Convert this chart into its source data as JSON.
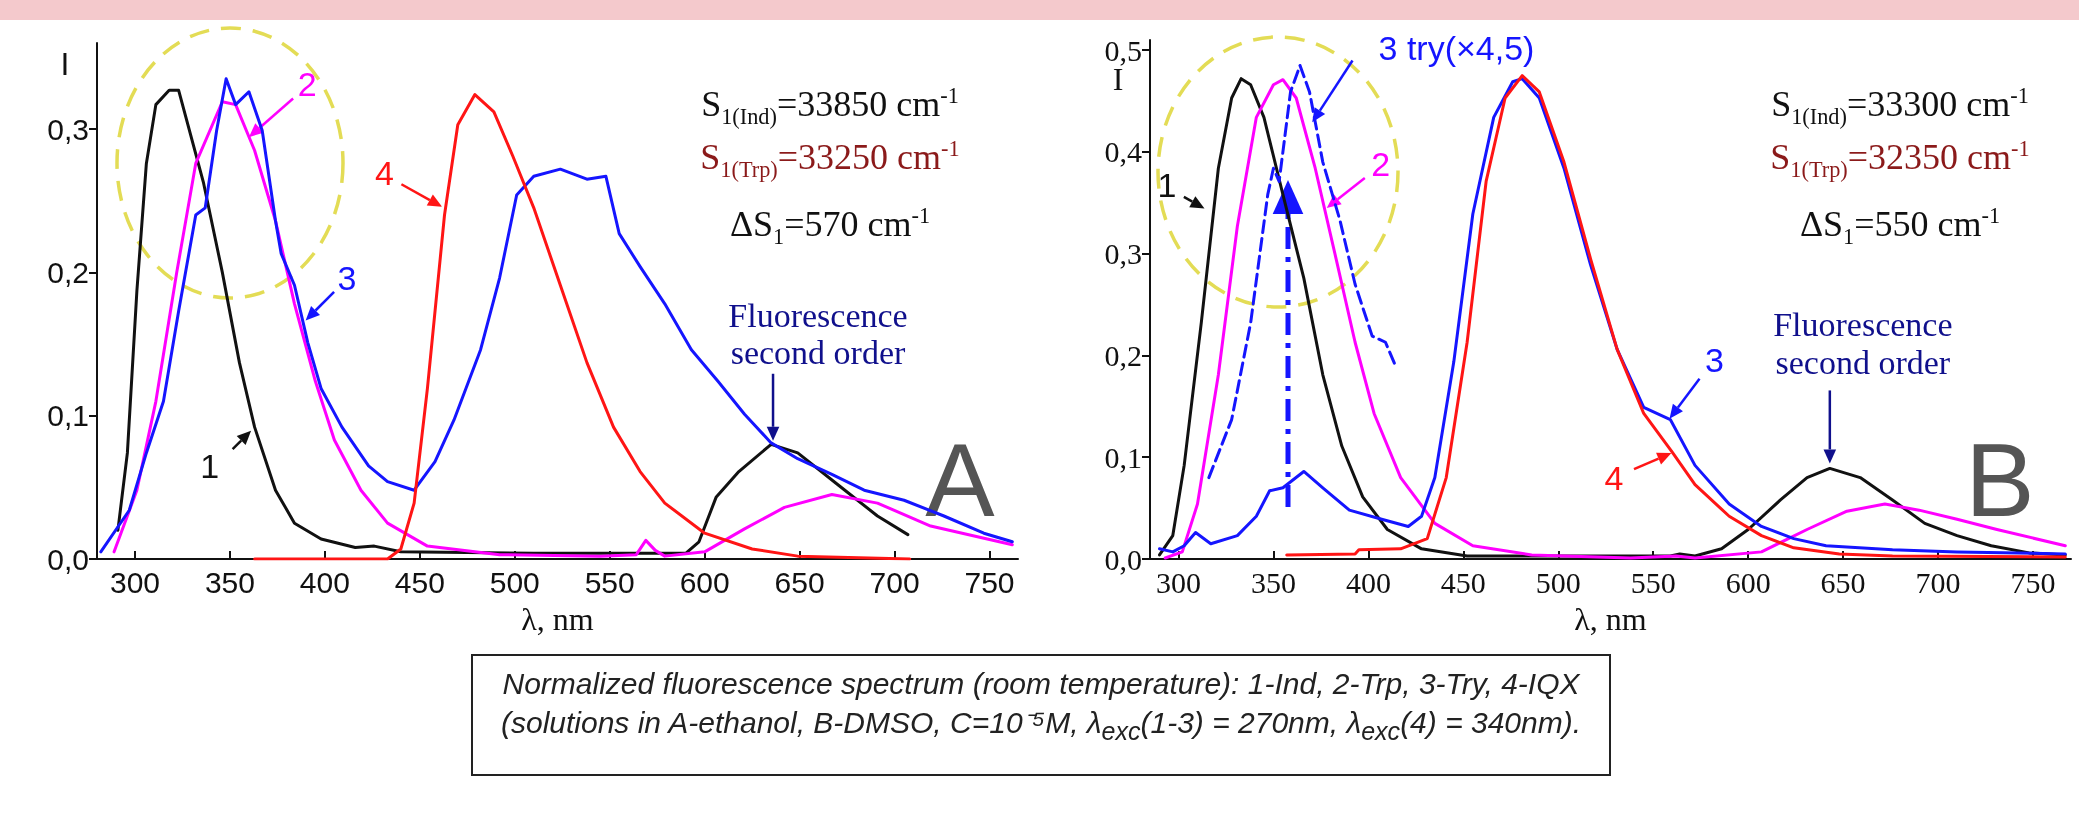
{
  "chart_data": [
    {
      "type": "line",
      "xlabel": "λ, nm",
      "ylabel": "I",
      "xlim": [
        280,
        765
      ],
      "ylim": [
        0,
        0.36
      ],
      "xticks": [
        300,
        350,
        400,
        450,
        500,
        550,
        600,
        650,
        700,
        750
      ],
      "yticks": [
        {
          "value": 0,
          "label": "0,0"
        },
        {
          "value": 0.1,
          "label": "0,1"
        },
        {
          "value": 0.2,
          "label": "0,2"
        },
        {
          "value": 0.3,
          "label": "0,3"
        }
      ],
      "series": [
        {
          "color": "#111111",
          "x": [
            291,
            296,
            301,
            306,
            311,
            318,
            323,
            336,
            346,
            355,
            363,
            374,
            384,
            398,
            416,
            426,
            440,
            510,
            590,
            597,
            606,
            618,
            635,
            649,
            670,
            691,
            707
          ],
          "values": [
            0.02,
            0.074,
            0.187,
            0.276,
            0.317,
            0.327,
            0.327,
            0.263,
            0.2,
            0.137,
            0.092,
            0.048,
            0.025,
            0.014,
            0.008,
            0.009,
            0.005,
            0.004,
            0.004,
            0.012,
            0.043,
            0.061,
            0.08,
            0.074,
            0.052,
            0.03,
            0.017
          ]
        },
        {
          "color": "#ff00ff",
          "x": [
            289,
            301,
            311,
            322,
            332,
            346,
            353,
            363,
            374,
            384,
            395,
            405,
            419,
            433,
            454,
            492,
            545,
            564,
            569,
            574,
            579,
            600,
            621,
            642,
            667,
            691,
            719,
            762
          ],
          "values": [
            0.005,
            0.048,
            0.11,
            0.2,
            0.276,
            0.319,
            0.317,
            0.285,
            0.236,
            0.178,
            0.124,
            0.083,
            0.048,
            0.025,
            0.009,
            0.003,
            0.002,
            0.003,
            0.013,
            0.006,
            0.002,
            0.005,
            0.021,
            0.036,
            0.045,
            0.039,
            0.023,
            0.01
          ]
        },
        {
          "color": "#1515ff",
          "x": [
            282,
            297,
            306,
            315,
            323,
            332,
            337,
            343,
            348,
            353,
            360,
            367,
            374,
            377,
            384,
            391,
            398,
            409,
            423,
            433,
            447,
            458,
            468,
            482,
            492,
            501,
            510,
            524,
            538,
            548,
            555,
            566,
            579,
            593,
            607,
            621,
            635,
            649,
            667,
            684,
            705,
            726,
            747,
            762
          ],
          "values": [
            0.005,
            0.034,
            0.074,
            0.11,
            0.173,
            0.24,
            0.245,
            0.299,
            0.335,
            0.317,
            0.326,
            0.299,
            0.236,
            0.213,
            0.191,
            0.151,
            0.119,
            0.092,
            0.065,
            0.054,
            0.048,
            0.068,
            0.097,
            0.146,
            0.196,
            0.254,
            0.267,
            0.272,
            0.265,
            0.267,
            0.227,
            0.204,
            0.178,
            0.146,
            0.124,
            0.101,
            0.081,
            0.07,
            0.059,
            0.048,
            0.041,
            0.03,
            0.018,
            0.012
          ]
        },
        {
          "color": "#ff1515",
          "x": [
            363,
            433,
            440,
            447,
            454,
            463,
            470,
            479,
            489,
            499,
            510,
            524,
            538,
            552,
            566,
            579,
            600,
            625,
            649,
            708
          ],
          "values": [
            0.0,
            0.0,
            0.007,
            0.039,
            0.119,
            0.24,
            0.303,
            0.324,
            0.312,
            0.281,
            0.245,
            0.191,
            0.137,
            0.092,
            0.061,
            0.039,
            0.018,
            0.007,
            0.002,
            0.0
          ]
        }
      ],
      "annotations": [
        {
          "text": "1",
          "x": 363,
          "y": 0.092
        },
        {
          "text": "2",
          "x": 358,
          "y": 0.292
        },
        {
          "text": "3",
          "x": 388,
          "y": 0.164
        },
        {
          "text": "4",
          "x": 464,
          "y": 0.244
        },
        {
          "text": "Fluorescence second order",
          "x": 636,
          "y": 0.079
        },
        "S$_{1(Ind)}$=33850 cm$^{-1}$",
        "S$_{1(Trp)}$=33250 cm$^{-1}$",
        "ΔS$_{1}$=570 cm$^{-1}$",
        "A"
      ]
    },
    {
      "type": "line",
      "xlabel": "λ, nm",
      "ylabel": "I",
      "xlim": [
        285,
        770
      ],
      "ylim": [
        0,
        0.51
      ],
      "xticks": [
        300,
        350,
        400,
        450,
        500,
        550,
        600,
        650,
        700,
        750
      ],
      "yticks": [
        {
          "value": 0,
          "label": "0,0"
        },
        {
          "value": 0.1,
          "label": "0,1"
        },
        {
          "value": 0.2,
          "label": "0,2"
        },
        {
          "value": 0.3,
          "label": "0,3"
        },
        {
          "value": 0.4,
          "label": "0,4"
        },
        {
          "value": 0.5,
          "label": "0,5"
        }
      ],
      "series": [
        {
          "color": "#111111",
          "x": [
            290,
            297,
            303,
            312,
            321,
            328,
            333,
            338,
            345,
            355,
            366,
            376,
            386,
            397,
            410,
            428,
            452,
            559,
            564,
            572,
            586,
            600,
            617,
            631,
            643,
            659,
            676,
            693,
            710,
            728,
            748,
            767
          ],
          "values": [
            0.004,
            0.023,
            0.092,
            0.232,
            0.384,
            0.453,
            0.472,
            0.466,
            0.434,
            0.358,
            0.276,
            0.181,
            0.111,
            0.061,
            0.029,
            0.01,
            0.003,
            0.003,
            0.005,
            0.003,
            0.01,
            0.029,
            0.058,
            0.08,
            0.089,
            0.08,
            0.058,
            0.035,
            0.023,
            0.013,
            0.006,
            0.004
          ]
        },
        {
          "color": "#ff00ff",
          "x": [
            293,
            302,
            310,
            321,
            331,
            341,
            350,
            355,
            362,
            372,
            383,
            393,
            403,
            417,
            435,
            455,
            486,
            538,
            562,
            572,
            607,
            631,
            652,
            672,
            690,
            710,
            731,
            767
          ],
          "values": [
            0.001,
            0.007,
            0.054,
            0.181,
            0.327,
            0.434,
            0.466,
            0.471,
            0.453,
            0.384,
            0.295,
            0.213,
            0.143,
            0.08,
            0.035,
            0.013,
            0.004,
            0.001,
            0.003,
            0.001,
            0.007,
            0.029,
            0.047,
            0.054,
            0.048,
            0.039,
            0.029,
            0.013
          ]
        },
        {
          "color": "#1515ff",
          "x": [
            290,
            297,
            303,
            309,
            317,
            331,
            341,
            348,
            355,
            366,
            376,
            390,
            407,
            421,
            428,
            435,
            445,
            455,
            466,
            476,
            481,
            490,
            503,
            517,
            531,
            545,
            559,
            572,
            590,
            607,
            624,
            641,
            676,
            710,
            767
          ],
          "values": [
            0.01,
            0.007,
            0.013,
            0.026,
            0.015,
            0.023,
            0.042,
            0.067,
            0.07,
            0.086,
            0.07,
            0.048,
            0.039,
            0.032,
            0.042,
            0.08,
            0.194,
            0.339,
            0.434,
            0.469,
            0.472,
            0.453,
            0.384,
            0.289,
            0.206,
            0.149,
            0.137,
            0.092,
            0.054,
            0.032,
            0.02,
            0.013,
            0.009,
            0.007,
            0.005
          ]
        },
        {
          "color": "#ff1515",
          "x": [
            357,
            393,
            395,
            417,
            431,
            441,
            452,
            462,
            472,
            481,
            490,
            503,
            517,
            531,
            545,
            560,
            572,
            590,
            607,
            624,
            648,
            676,
            767
          ],
          "values": [
            0.004,
            0.005,
            0.009,
            0.01,
            0.02,
            0.08,
            0.213,
            0.371,
            0.453,
            0.475,
            0.459,
            0.39,
            0.295,
            0.206,
            0.143,
            0.105,
            0.073,
            0.042,
            0.023,
            0.011,
            0.005,
            0.003,
            0.002
          ]
        },
        {
          "color": "#1515ff",
          "line_style": "dashed",
          "x": [
            316,
            328,
            338,
            347,
            350,
            353,
            359,
            364,
            369,
            376,
            385,
            393,
            402,
            409,
            414
          ],
          "values": [
            0.08,
            0.137,
            0.232,
            0.358,
            0.384,
            0.371,
            0.459,
            0.485,
            0.459,
            0.39,
            0.333,
            0.27,
            0.219,
            0.213,
            0.191
          ]
        }
      ],
      "annotations": [
        {
          "text": "1",
          "x": 316,
          "y": 0.342
        },
        {
          "text": "2",
          "x": 376,
          "y": 0.342
        },
        {
          "text": "3",
          "x": 557,
          "y": 0.134
        },
        {
          "text": "4",
          "x": 562,
          "y": 0.106
        },
        {
          "text": "3 try(×4,5)",
          "x": 369,
          "y": 0.425
        },
        {
          "text": "Fluorescence second order",
          "x": 643,
          "y": 0.089
        },
        "S$_{1(Ind)}$=33300 cm$^{-1}$",
        "S$_{1(Trp)}$=32350 cm$^{-1}$",
        "ΔS$_{1}$=550 cm$^{-1}$",
        "B",
        "Normalized fluorescence spectrum (room temperature): 1-Ind, 2-Trp, 3-Try, 4-IQX (solutions in A-ethanol, B-DMSO, C=10⁻⁵M, λ$_{exc}$(1-3) = 270nm, λ$_{exc}$(4) = 340nm)."
      ]
    }
  ]
}
